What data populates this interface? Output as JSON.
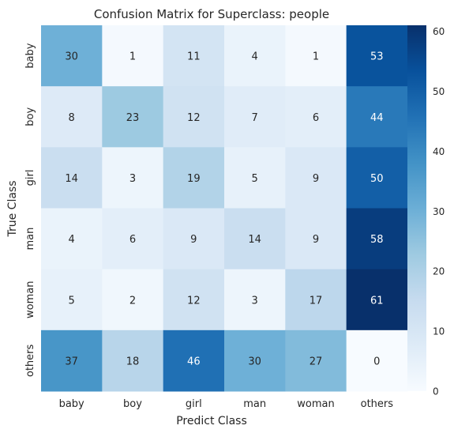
{
  "chart_data": {
    "type": "heatmap",
    "title": "Confusion Matrix for Superclass: people",
    "xlabel": "Predict Class",
    "ylabel": "True Class",
    "x_categories": [
      "baby",
      "boy",
      "girl",
      "man",
      "woman",
      "others"
    ],
    "y_categories": [
      "baby",
      "boy",
      "girl",
      "man",
      "woman",
      "others"
    ],
    "values": [
      [
        30,
        1,
        11,
        4,
        1,
        53
      ],
      [
        8,
        23,
        12,
        7,
        6,
        44
      ],
      [
        14,
        3,
        19,
        5,
        9,
        50
      ],
      [
        4,
        6,
        9,
        14,
        9,
        58
      ],
      [
        5,
        2,
        12,
        3,
        17,
        61
      ],
      [
        37,
        18,
        46,
        30,
        27,
        0
      ]
    ],
    "colormap": "Blues",
    "vmin": 0,
    "vmax": 61,
    "colorbar_ticks": [
      0,
      10,
      20,
      30,
      40,
      50,
      60
    ],
    "annotated": true
  }
}
